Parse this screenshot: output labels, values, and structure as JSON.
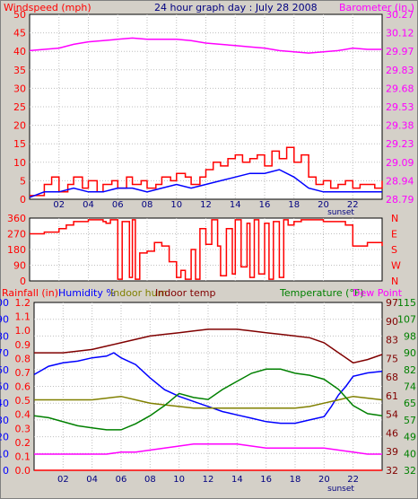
{
  "title": "24 hour graph day : July 28 2008",
  "sunset_label": "sunset",
  "colors": {
    "background": "#d4d0c8",
    "plot_bg": "#ffffff",
    "grid": "#bfbfbf",
    "windspeed": "#ff0000",
    "windspeed_avg": "#0000ff",
    "barometer": "#ff00ff",
    "direction": "#ff0000",
    "rainfall": "#ff0000",
    "humidity": "#0000ff",
    "indoor_hum": "#808000",
    "indoor_temp": "#800000",
    "temperature": "#008000",
    "dew_point": "#ff00ff"
  },
  "chart_data": [
    {
      "type": "line",
      "panel": "wind_barometer",
      "left_axis_label": "Windspeed (mph)",
      "right_axis_label": "Barometer (in.)",
      "left_ticks": [
        "0",
        "5",
        "10",
        "15",
        "20",
        "25",
        "30",
        "35",
        "40",
        "45",
        "50"
      ],
      "right_ticks": [
        "28.79",
        "28.94",
        "29.09",
        "29.23",
        "29.38",
        "29.53",
        "29.68",
        "29.83",
        "29.97",
        "30.12",
        "30.27"
      ],
      "x_ticks": [
        "02",
        "04",
        "06",
        "08",
        "10",
        "12",
        "14",
        "16",
        "18",
        "20",
        "22"
      ],
      "ylim_left": [
        0,
        50
      ],
      "ylim_right": [
        28.79,
        30.27
      ],
      "xlim": [
        0,
        24
      ],
      "series": [
        {
          "name": "Windspeed (mph)",
          "axis": "left",
          "kind": "step",
          "x": [
            0,
            1,
            1.5,
            2,
            2.6,
            3,
            3.6,
            4,
            4.6,
            5,
            5.6,
            6,
            6.6,
            7,
            7.6,
            8,
            8.6,
            9,
            9.6,
            10,
            10.6,
            11,
            11.6,
            12,
            12.5,
            13,
            13.5,
            14,
            14.5,
            15,
            15.5,
            16,
            16.5,
            17,
            17.5,
            18,
            18.5,
            19,
            19.5,
            20,
            20.5,
            21,
            21.5,
            22,
            22.5,
            23,
            23.5,
            24
          ],
          "y": [
            1,
            4,
            6,
            2,
            4,
            6,
            3,
            5,
            2,
            4,
            5,
            3,
            6,
            4,
            5,
            3,
            4,
            6,
            5,
            7,
            6,
            4,
            6,
            8,
            10,
            9,
            11,
            12,
            10,
            11,
            12,
            9,
            13,
            11,
            14,
            10,
            12,
            6,
            4,
            5,
            3,
            4,
            5,
            3,
            4,
            4,
            3,
            5
          ]
        },
        {
          "name": "Windspeed avg",
          "axis": "left",
          "kind": "line",
          "x": [
            0,
            1,
            2,
            3,
            4,
            5,
            6,
            7,
            8,
            9,
            10,
            11,
            12,
            13,
            14,
            15,
            16,
            17,
            18,
            19,
            20,
            21,
            22,
            23,
            24
          ],
          "y": [
            0.5,
            2,
            2,
            3,
            2,
            2,
            3,
            3,
            2,
            3,
            4,
            3,
            4,
            5,
            6,
            7,
            7,
            8,
            6,
            3,
            2,
            2,
            2,
            2,
            2
          ]
        },
        {
          "name": "Barometer (in.)",
          "axis": "right",
          "kind": "line",
          "x": [
            0,
            1,
            2,
            3,
            4,
            5,
            6,
            7,
            8,
            9,
            10,
            11,
            12,
            13,
            14,
            15,
            16,
            17,
            18,
            19,
            20,
            21,
            22,
            23,
            24
          ],
          "y": [
            29.98,
            29.99,
            30.0,
            30.03,
            30.05,
            30.06,
            30.07,
            30.08,
            30.07,
            30.07,
            30.07,
            30.06,
            30.04,
            30.03,
            30.02,
            30.01,
            30.0,
            29.98,
            29.97,
            29.96,
            29.97,
            29.98,
            30.0,
            29.99,
            29.99
          ]
        }
      ]
    },
    {
      "type": "line",
      "panel": "wind_direction",
      "left_ticks": [
        "0",
        "90",
        "180",
        "270",
        "360"
      ],
      "right_ticks": [
        "N",
        "W",
        "S",
        "E",
        "N"
      ],
      "ylim": [
        0,
        360
      ],
      "xlim": [
        0,
        24
      ],
      "series": [
        {
          "name": "Wind direction",
          "kind": "step",
          "x": [
            0,
            1,
            2,
            2.5,
            3,
            4,
            5,
            5.2,
            5.5,
            6,
            6.3,
            6.8,
            7,
            7.2,
            7.5,
            8,
            8.5,
            9,
            9.5,
            10,
            10.3,
            10.6,
            11,
            11.3,
            11.6,
            12,
            12.4,
            12.8,
            13,
            13.4,
            13.8,
            14,
            14.4,
            14.8,
            15,
            15.3,
            15.6,
            16,
            16.3,
            16.6,
            17,
            17.3,
            17.6,
            18,
            18.5,
            19,
            20,
            21,
            21.5,
            22,
            23,
            24
          ],
          "y": [
            270,
            280,
            300,
            320,
            340,
            350,
            340,
            330,
            350,
            10,
            340,
            20,
            350,
            10,
            160,
            170,
            220,
            200,
            110,
            20,
            60,
            10,
            180,
            10,
            300,
            210,
            350,
            200,
            30,
            300,
            40,
            350,
            80,
            330,
            20,
            350,
            40,
            330,
            10,
            340,
            20,
            350,
            320,
            340,
            350,
            350,
            340,
            340,
            320,
            200,
            220,
            200
          ]
        }
      ]
    },
    {
      "type": "line",
      "panel": "rain_humidity_temperature",
      "legend_left": [
        "Rainfall (in)",
        "Humidity %",
        "Indoor hum",
        "Indoor temp"
      ],
      "legend_right": [
        "Temperature (°F)",
        "Dew Point"
      ],
      "rain_ticks": [
        "0.0",
        "0.1",
        "0.2",
        "0.3",
        "0.4",
        "0.5",
        "0.6",
        "0.7",
        "0.8",
        "0.9",
        "1.0",
        "1.1",
        "1.2"
      ],
      "humidity_ticks": [
        "0",
        "10",
        "20",
        "30",
        "40",
        "50",
        "60",
        "70",
        "80",
        "90",
        "100"
      ],
      "temp_ticks": [
        "32",
        "40",
        "49",
        "57",
        "65",
        "74",
        "82",
        "90",
        "98",
        "107",
        "115"
      ],
      "alt_ticks": [
        "32",
        "39",
        "46",
        "54",
        "61",
        "68",
        "75",
        "83",
        "90",
        "97"
      ],
      "x_ticks": [
        "02",
        "04",
        "06",
        "08",
        "10",
        "12",
        "14",
        "16",
        "18",
        "20",
        "22"
      ],
      "ylim_rain": [
        0,
        1.2
      ],
      "ylim_humidity": [
        0,
        100
      ],
      "ylim_temp": [
        32,
        115
      ],
      "xlim": [
        0,
        24
      ],
      "series": [
        {
          "name": "Rainfall (in)",
          "axis": "rain",
          "x": [
            0,
            24
          ],
          "y": [
            0,
            0
          ]
        },
        {
          "name": "Humidity %",
          "axis": "humidity",
          "x": [
            0,
            1,
            2,
            3,
            4,
            5,
            5.5,
            6,
            7,
            8,
            9,
            10,
            11,
            12,
            13,
            14,
            15,
            16,
            17,
            18,
            19,
            20,
            20.5,
            21,
            21.5,
            22,
            23,
            24
          ],
          "y": [
            57,
            62,
            64,
            65,
            67,
            68,
            70,
            67,
            63,
            55,
            48,
            44,
            41,
            38,
            35,
            33,
            31,
            29,
            28,
            28,
            30,
            32,
            38,
            45,
            50,
            56,
            58,
            59
          ]
        },
        {
          "name": "Indoor hum",
          "axis": "humidity",
          "x": [
            0,
            1,
            2,
            3,
            4,
            5,
            6,
            7,
            8,
            9,
            10,
            11,
            12,
            13,
            14,
            15,
            16,
            17,
            18,
            19,
            20,
            21,
            22,
            23,
            24
          ],
          "y": [
            42,
            42,
            42,
            42,
            42,
            43,
            44,
            42,
            40,
            39,
            38,
            37,
            37,
            37,
            37,
            37,
            37,
            37,
            37,
            38,
            40,
            42,
            44,
            43,
            42
          ]
        },
        {
          "name": "Indoor temp",
          "axis": "humidity",
          "x": [
            0,
            1,
            2,
            3,
            4,
            5,
            6,
            7,
            8,
            9,
            10,
            11,
            12,
            13,
            14,
            15,
            16,
            17,
            18,
            19,
            20,
            21,
            22,
            23,
            24
          ],
          "y": [
            70,
            70,
            70,
            71,
            72,
            74,
            76,
            78,
            80,
            81,
            82,
            83,
            84,
            84,
            84,
            83,
            82,
            81,
            80,
            79,
            76,
            70,
            64,
            66,
            69
          ]
        },
        {
          "name": "Temperature (°F)",
          "axis": "temp",
          "x": [
            0,
            1,
            2,
            3,
            4,
            5,
            6,
            7,
            8,
            9,
            10,
            11,
            12,
            13,
            14,
            15,
            16,
            17,
            18,
            19,
            20,
            21,
            22,
            23,
            24
          ],
          "y": [
            59,
            58,
            56,
            54,
            53,
            52,
            52,
            55,
            59,
            64,
            70,
            68,
            67,
            72,
            76,
            80,
            82,
            82,
            80,
            79,
            77,
            72,
            64,
            60,
            59
          ]
        },
        {
          "name": "Dew Point",
          "axis": "temp",
          "x": [
            0,
            1,
            2,
            3,
            4,
            5,
            6,
            7,
            8,
            9,
            10,
            11,
            12,
            13,
            14,
            15,
            16,
            17,
            18,
            19,
            20,
            21,
            22,
            23,
            24
          ],
          "y": [
            40,
            40,
            40,
            40,
            40,
            40,
            41,
            41,
            42,
            43,
            44,
            45,
            45,
            45,
            45,
            44,
            43,
            43,
            43,
            43,
            43,
            42,
            41,
            40,
            40
          ]
        }
      ]
    }
  ]
}
